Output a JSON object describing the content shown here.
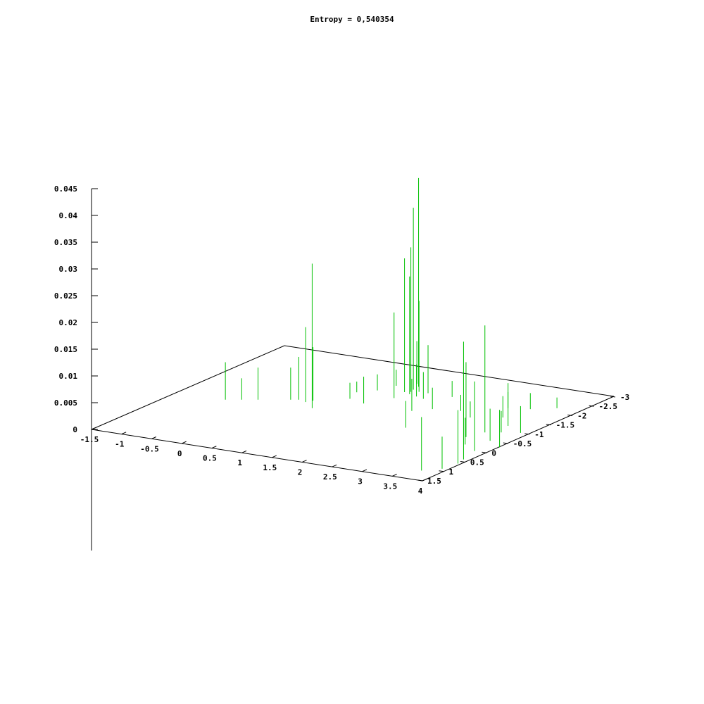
{
  "chart_data": {
    "type": "scatter",
    "style": "3d-impulses",
    "title": "Entropy = 0,540354",
    "series_color": "#00c000",
    "xlim": [
      -1.5,
      4
    ],
    "ylim": [
      -3,
      1.5
    ],
    "zlim": [
      0,
      0.045
    ],
    "x_ticks": [
      "-1.5",
      "-1",
      "-0.5",
      "0",
      "0.5",
      "1",
      "1.5",
      "2",
      "2.5",
      "3",
      "3.5",
      "4"
    ],
    "y_ticks": [
      "-3",
      "-2.5",
      "-2",
      "-1.5",
      "-1",
      "-0.5",
      "0",
      "0.5",
      "1",
      "1.5"
    ],
    "z_ticks": [
      "0",
      "0.005",
      "0.01",
      "0.015",
      "0.02",
      "0.025",
      "0.03",
      "0.035",
      "0.04",
      "0.045"
    ],
    "grid": false,
    "points": [
      {
        "x": 1.3,
        "y": -2.2,
        "z": 0.039
      },
      {
        "x": 1.32,
        "y": -2.05,
        "z": 0.034
      },
      {
        "x": 1.35,
        "y": -1.95,
        "z": 0.027
      },
      {
        "x": 1.28,
        "y": -1.9,
        "z": 0.025
      },
      {
        "x": 1.4,
        "y": -1.85,
        "z": 0.022
      },
      {
        "x": 1.32,
        "y": -1.6,
        "z": 0.016
      },
      {
        "x": 1.2,
        "y": -2.3,
        "z": 0.008
      },
      {
        "x": 1.45,
        "y": -2.0,
        "z": 0.017
      },
      {
        "x": 1.55,
        "y": -1.8,
        "z": 0.006
      },
      {
        "x": 1.6,
        "y": -2.0,
        "z": 0.009
      },
      {
        "x": 1.7,
        "y": -1.75,
        "z": 0.005
      },
      {
        "x": 0.6,
        "y": -0.7,
        "z": 0.027
      },
      {
        "x": 0.35,
        "y": -0.9,
        "z": 0.014
      },
      {
        "x": 0.4,
        "y": -1.0,
        "z": 0.01
      },
      {
        "x": 0.1,
        "y": -0.9,
        "z": 0.006
      },
      {
        "x": 0.2,
        "y": -0.95,
        "z": 0.008
      },
      {
        "x": -0.3,
        "y": -0.7,
        "z": 0.006
      },
      {
        "x": -0.5,
        "y": -0.6,
        "z": 0.004
      },
      {
        "x": -0.7,
        "y": -0.5,
        "z": 0.007
      },
      {
        "x": 0.8,
        "y": -1.3,
        "z": 0.003
      },
      {
        "x": 0.9,
        "y": -1.8,
        "z": 0.003
      },
      {
        "x": 0.7,
        "y": -1.6,
        "z": 0.002
      },
      {
        "x": 1.0,
        "y": -2.1,
        "z": 0.003
      },
      {
        "x": 1.9,
        "y": -1.2,
        "z": 0.006
      },
      {
        "x": 2.0,
        "y": -2.0,
        "z": 0.003
      },
      {
        "x": 2.1,
        "y": -1.4,
        "z": 0.004
      },
      {
        "x": 2.5,
        "y": -1.5,
        "z": 0.003
      },
      {
        "x": 2.8,
        "y": -1.3,
        "z": 0.003
      },
      {
        "x": 3.4,
        "y": -0.8,
        "z": 0.02
      },
      {
        "x": 3.3,
        "y": -0.5,
        "z": 0.014
      },
      {
        "x": 3.5,
        "y": -1.2,
        "z": 0.008
      },
      {
        "x": 3.2,
        "y": -1.5,
        "z": 0.004
      },
      {
        "x": 3.6,
        "y": -2.2,
        "z": 0.002
      },
      {
        "x": 3.0,
        "y": -1.9,
        "z": 0.003
      },
      {
        "x": 3.9,
        "y": 0.4,
        "z": 0.022
      },
      {
        "x": 3.8,
        "y": 0.0,
        "z": 0.013
      },
      {
        "x": 4.0,
        "y": -0.3,
        "z": 0.007
      },
      {
        "x": 3.7,
        "y": -0.5,
        "z": 0.006
      },
      {
        "x": 3.95,
        "y": 0.6,
        "z": 0.01
      },
      {
        "x": 3.6,
        "y": -0.9,
        "z": 0.004
      },
      {
        "x": 3.85,
        "y": -1.0,
        "z": 0.005
      },
      {
        "x": 3.3,
        "y": -2.0,
        "z": 0.003
      },
      {
        "x": 3.7,
        "y": 1.1,
        "z": 0.01
      },
      {
        "x": 3.9,
        "y": 0.9,
        "z": 0.006
      },
      {
        "x": 3.5,
        "y": -0.2,
        "z": 0.005
      },
      {
        "x": 2.3,
        "y": -0.5,
        "z": 0.005
      },
      {
        "x": 1.1,
        "y": -1.2,
        "z": 0.005
      }
    ]
  }
}
